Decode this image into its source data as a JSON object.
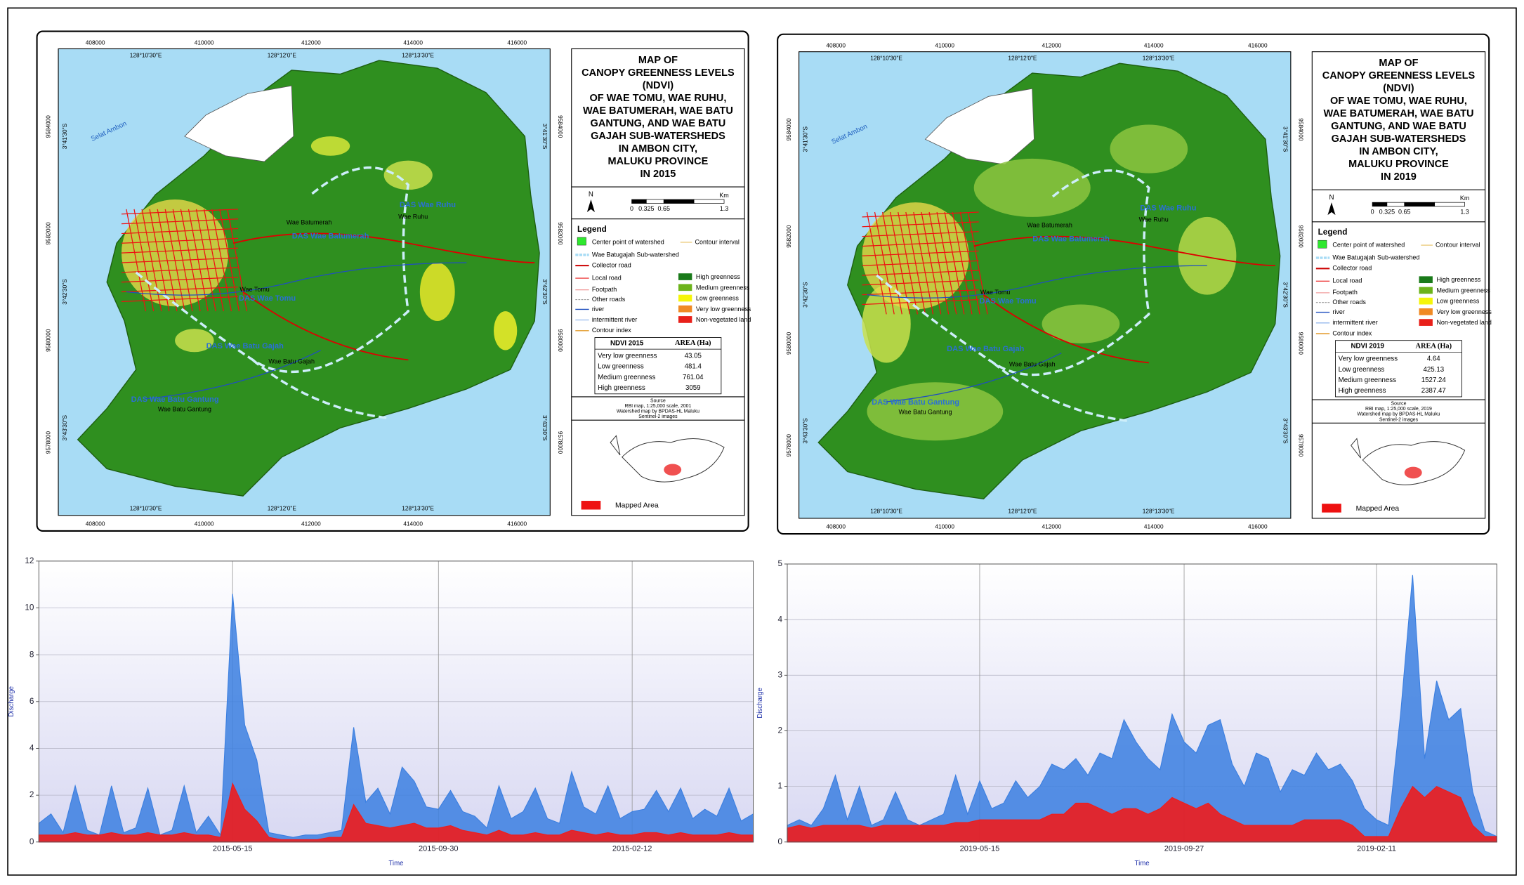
{
  "chart_data": [
    {
      "type": "line",
      "ylabel": "Discharge",
      "xlabel": "Time",
      "categories": [
        null,
        null,
        null,
        null,
        null,
        null,
        null,
        null,
        null,
        null,
        null,
        null,
        null,
        null,
        null,
        null,
        "2015-05-15",
        null,
        null,
        null,
        null,
        null,
        null,
        null,
        null,
        null,
        null,
        null,
        null,
        null,
        null,
        null,
        null,
        "2015-09-30",
        null,
        null,
        null,
        null,
        null,
        null,
        null,
        null,
        null,
        null,
        null,
        null,
        null,
        null,
        null,
        "2015-02-12",
        null,
        null,
        null,
        null,
        null,
        null,
        null,
        null,
        null,
        null
      ],
      "series": [
        {
          "color": "#3b7fe0",
          "values": [
            0.8,
            1.2,
            0.4,
            2.4,
            0.5,
            0.3,
            2.4,
            0.4,
            0.6,
            2.3,
            0.3,
            0.5,
            2.4,
            0.4,
            1.1,
            0.3,
            10.6,
            5.0,
            3.5,
            0.4,
            0.3,
            0.2,
            0.3,
            0.3,
            0.4,
            0.5,
            4.9,
            1.7,
            2.3,
            1.2,
            3.2,
            2.6,
            1.5,
            1.4,
            2.2,
            1.3,
            1.1,
            0.6,
            2.4,
            1.0,
            1.3,
            2.3,
            1.0,
            0.8,
            3.0,
            1.5,
            1.2,
            2.4,
            1.0,
            1.3,
            1.4,
            2.2,
            1.3,
            2.3,
            1.0,
            1.4,
            1.1,
            2.3,
            0.9,
            1.2
          ]
        },
        {
          "color": "#ee1c1c",
          "values": [
            0.3,
            0.3,
            0.3,
            0.4,
            0.3,
            0.3,
            0.4,
            0.3,
            0.3,
            0.4,
            0.3,
            0.3,
            0.4,
            0.3,
            0.3,
            0.2,
            2.5,
            1.4,
            0.9,
            0.2,
            0.1,
            0.1,
            0.1,
            0.1,
            0.2,
            0.2,
            1.6,
            0.8,
            0.7,
            0.6,
            0.7,
            0.8,
            0.6,
            0.6,
            0.7,
            0.5,
            0.4,
            0.3,
            0.5,
            0.3,
            0.3,
            0.4,
            0.3,
            0.3,
            0.5,
            0.4,
            0.3,
            0.4,
            0.3,
            0.3,
            0.4,
            0.4,
            0.3,
            0.4,
            0.3,
            0.3,
            0.3,
            0.4,
            0.3,
            0.3
          ]
        }
      ],
      "ylim": [
        0,
        12
      ],
      "yticks": [
        0,
        2,
        4,
        6,
        8,
        10,
        12
      ],
      "grid": true
    },
    {
      "type": "line",
      "ylabel": "Discharge",
      "xlabel": "Time",
      "categories": [
        null,
        null,
        null,
        null,
        null,
        null,
        null,
        null,
        null,
        null,
        null,
        null,
        null,
        null,
        null,
        null,
        "2019-05-15",
        null,
        null,
        null,
        null,
        null,
        null,
        null,
        null,
        null,
        null,
        null,
        null,
        null,
        null,
        null,
        null,
        "2019-09-27",
        null,
        null,
        null,
        null,
        null,
        null,
        null,
        null,
        null,
        null,
        null,
        null,
        null,
        null,
        null,
        "2019-02-11",
        null,
        null,
        null,
        null,
        null,
        null,
        null,
        null,
        null,
        null
      ],
      "series": [
        {
          "color": "#3b7fe0",
          "values": [
            0.3,
            0.4,
            0.3,
            0.6,
            1.2,
            0.4,
            1.0,
            0.3,
            0.4,
            0.9,
            0.4,
            0.3,
            0.4,
            0.5,
            1.2,
            0.5,
            1.1,
            0.6,
            0.7,
            1.1,
            0.8,
            1.0,
            1.4,
            1.3,
            1.5,
            1.2,
            1.6,
            1.5,
            2.2,
            1.8,
            1.5,
            1.3,
            2.3,
            1.8,
            1.6,
            2.1,
            2.2,
            1.4,
            1.0,
            1.6,
            1.5,
            0.9,
            1.3,
            1.2,
            1.6,
            1.3,
            1.4,
            1.1,
            0.6,
            0.4,
            0.3,
            2.3,
            4.8,
            1.5,
            2.9,
            2.2,
            2.4,
            0.9,
            0.2,
            0.1
          ]
        },
        {
          "color": "#ee1c1c",
          "values": [
            0.25,
            0.3,
            0.25,
            0.3,
            0.3,
            0.3,
            0.3,
            0.25,
            0.3,
            0.3,
            0.3,
            0.3,
            0.3,
            0.3,
            0.35,
            0.35,
            0.4,
            0.4,
            0.4,
            0.4,
            0.4,
            0.4,
            0.5,
            0.5,
            0.7,
            0.7,
            0.6,
            0.5,
            0.6,
            0.6,
            0.5,
            0.6,
            0.8,
            0.7,
            0.6,
            0.7,
            0.5,
            0.4,
            0.3,
            0.3,
            0.3,
            0.3,
            0.3,
            0.4,
            0.4,
            0.4,
            0.4,
            0.3,
            0.1,
            0.1,
            0.1,
            0.6,
            1.0,
            0.8,
            1.0,
            0.9,
            0.8,
            0.3,
            0.1,
            0.1
          ]
        }
      ],
      "ylim": [
        0,
        5
      ],
      "yticks": [
        0,
        1,
        2,
        3,
        4,
        5
      ],
      "grid": true
    }
  ],
  "maps": [
    {
      "title_lines": [
        "MAP OF",
        "CANOPY GREENNESS LEVELS",
        "(NDVI)",
        "OF WAE TOMU, WAE RUHU,",
        "WAE BATUMERAH, WAE BATU",
        "GANTUNG, AND WAE BATU",
        "GAJAH SUB-WATERSHEDS",
        "IN AMBON CITY,",
        "MALUKU PROVINCE",
        "IN 2015"
      ],
      "scale": {
        "north": "N",
        "ticks": [
          "0",
          "0.325",
          "0.65",
          "1.3"
        ],
        "unit": "Km"
      },
      "legend": {
        "title": "Legend",
        "contour_interval": "Contour interval",
        "lines": [
          "Center point of watershed",
          "Wae Batugajah Sub-watershed",
          "Collector road",
          "Local road",
          "Footpath",
          "Other roads",
          "river",
          "intermittent river",
          "Contour index"
        ],
        "classes": [
          "High greenness",
          "Medium greenness",
          "Low greenness",
          "Very low greenness",
          "Non-vegetated land"
        ]
      },
      "table": {
        "header": [
          "NDVI 2015",
          "AREA (Ha)"
        ],
        "rows": [
          [
            "Very low greenness",
            43.05
          ],
          [
            "Low greenness",
            481.4
          ],
          [
            "Medium greenness",
            761.04
          ],
          [
            "High greenness",
            3059
          ]
        ]
      },
      "source": [
        "Source",
        "RBI map, 1:25,000 scale, 2001",
        "Watershed map by BPDAS-HL Maluku",
        "Sentinel-2 images"
      ],
      "inset_label": "Mapped Area",
      "easting": [
        "408000",
        "410000",
        "412000",
        "414000",
        "416000"
      ],
      "longitude": [
        "128°10'30\"E",
        "128°12'0\"E",
        "128°13'30\"E"
      ],
      "northing": [
        "9584000",
        "9582000",
        "9580000",
        "9578000"
      ],
      "latitude": [
        "3°41'30\"S",
        "3°42'30\"S",
        "3°43'30\"S"
      ],
      "places": [
        "Selat Ambon",
        "Wae Batumerah",
        "Wae Ruhu",
        "DAS Wae Ruhu",
        "DAS Wae Batumerah",
        "Wae Tomu",
        "DAS Wae Tomu",
        "DAS Wae Batu Gajah",
        "Wae Batu Gajah",
        "DAS Wae Batu Gantung",
        "Wae Batu Gantung"
      ]
    },
    {
      "title_lines": [
        "MAP OF",
        "CANOPY GREENNESS LEVELS",
        "(NDVI)",
        "OF WAE TOMU, WAE RUHU,",
        "WAE BATUMERAH, WAE BATU",
        "GANTUNG, AND WAE BATU",
        "GAJAH SUB-WATERSHEDS",
        "IN AMBON CITY,",
        "MALUKU PROVINCE",
        "IN 2019"
      ],
      "scale": {
        "north": "N",
        "ticks": [
          "0",
          "0.325",
          "0.65",
          "1.3"
        ],
        "unit": "Km"
      },
      "legend": {
        "title": "Legend",
        "contour_interval": "Contour interval",
        "lines": [
          "Center point of watershed",
          "Wae Batugajah Sub-watershed",
          "Collector road",
          "Local road",
          "Footpath",
          "Other roads",
          "river",
          "intermittent river",
          "Contour index"
        ],
        "classes": [
          "High greenness",
          "Medium greenness",
          "Low greenness",
          "Very low greenness",
          "Non-vegetated land"
        ]
      },
      "table": {
        "header": [
          "NDVI 2019",
          "AREA (Ha)"
        ],
        "rows": [
          [
            "Very low greenness",
            4.64
          ],
          [
            "Low greenness",
            425.13
          ],
          [
            "Medium greenness",
            1527.24
          ],
          [
            "High greenness",
            2387.47
          ]
        ]
      },
      "source": [
        "Source",
        "RBI map, 1:25,000 scale, 2019",
        "Watershed map by BPDAS-HL Maluku",
        "Sentinel-2 images"
      ],
      "inset_label": "Mapped Area",
      "easting": [
        "408000",
        "410000",
        "412000",
        "414000",
        "416000"
      ],
      "longitude": [
        "128°10'30\"E",
        "128°12'0\"E",
        "128°13'30\"E"
      ],
      "northing": [
        "9584000",
        "9582000",
        "9580000",
        "9578000"
      ],
      "latitude": [
        "3°41'30\"S",
        "3°42'30\"S",
        "3°43'30\"S"
      ],
      "places": [
        "Selat Ambon",
        "Wae Batumerah",
        "Wae Ruhu",
        "DAS Wae Ruhu",
        "DAS Wae Batumerah",
        "Wae Tomu",
        "DAS Wae Tomu",
        "DAS Wae Batu Gajah",
        "Wae Batu Gajah",
        "DAS Wae Batu Gantung",
        "Wae Batu Gantung"
      ]
    }
  ]
}
